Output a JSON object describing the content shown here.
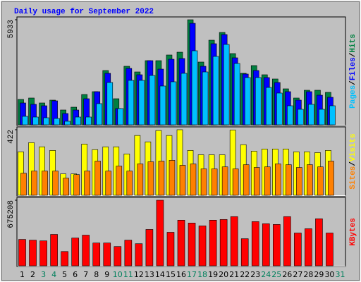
{
  "chart_data": {
    "type": "bar",
    "title": "Daily usage for September 2022",
    "categories": [
      "1",
      "2",
      "3",
      "4",
      "5",
      "6",
      "7",
      "8",
      "9",
      "10",
      "11",
      "12",
      "13",
      "14",
      "15",
      "16",
      "17",
      "18",
      "19",
      "20",
      "21",
      "22",
      "23",
      "24",
      "25",
      "26",
      "27",
      "28",
      "29",
      "30",
      "31"
    ],
    "category_colors": [
      "#000000",
      "#000000",
      "#00805c",
      "#00805c",
      "#000000",
      "#000000",
      "#000000",
      "#000000",
      "#000000",
      "#00805c",
      "#00805c",
      "#000000",
      "#000000",
      "#000000",
      "#000000",
      "#000000",
      "#00805c",
      "#00805c",
      "#000000",
      "#000000",
      "#000000",
      "#000000",
      "#000000",
      "#00805c",
      "#00805c",
      "#000000",
      "#000000",
      "#000000",
      "#000000",
      "#000000",
      "#00805c"
    ],
    "legend_separator": "/",
    "panels": [
      {
        "ylim": [
          0,
          5933
        ],
        "yticks": [
          5933
        ],
        "series": [
          {
            "name": "Pages",
            "color": "#00c0ff",
            "values": [
              478,
              438,
              398,
              358,
              199,
              438,
              438,
              1195,
              2389,
              916,
              2509,
              2509,
              2787,
              2190,
              2429,
              2907,
              4181,
              2986,
              3862,
              4539,
              3464,
              2668,
              2668,
              2110,
              1792,
              1075,
              876,
              1155,
              876,
              1075,
              null
            ]
          },
          {
            "name": "Files",
            "color": "#0000ff",
            "values": [
              1234,
              1155,
              1075,
              1354,
              637,
              836,
              1473,
              1871,
              2907,
              916,
              3185,
              2827,
              3623,
              3145,
              3703,
              3743,
              5733,
              3305,
              4579,
              5097,
              3783,
              2867,
              3066,
              2668,
              2389,
              1871,
              1394,
              1871,
              1672,
              1553,
              null
            ]
          },
          {
            "name": "Hits",
            "color": "#008040",
            "values": [
              1433,
              1513,
              1234,
              1393,
              836,
              995,
              1712,
              1871,
              3066,
              1473,
              3305,
              2986,
              3623,
              3623,
              3942,
              4101,
              5933,
              3544,
              4778,
              5216,
              4022,
              2907,
              3345,
              2827,
              2588,
              2031,
              1513,
              1951,
              1951,
              1832,
              null
            ]
          }
        ]
      },
      {
        "ylim": [
          0,
          422
        ],
        "yticks": [
          422
        ],
        "series": [
          {
            "name": "Sites",
            "color": "#ff8000",
            "values": [
              142,
              156,
              156,
              156,
              110,
              133,
              156,
              220,
              156,
              188,
              156,
              202,
              216,
              220,
              225,
              193,
              202,
              170,
              170,
              183,
              170,
              197,
              179,
              183,
              202,
              197,
              179,
              197,
              183,
              220,
              null
            ]
          },
          {
            "name": "Visits",
            "color": "#ffff00",
            "values": [
              280,
              339,
              312,
              289,
              138,
              138,
              330,
              294,
              312,
              312,
              266,
              385,
              344,
              417,
              385,
              422,
              289,
              261,
              261,
              261,
              420,
              326,
              284,
              298,
              298,
              298,
              280,
              280,
              275,
              289,
              null
            ]
          }
        ]
      },
      {
        "ylim": [
          0,
          675208
        ],
        "yticks": [
          675208
        ],
        "series": [
          {
            "name": "KBytes",
            "color": "#ff0000",
            "values": [
              271543,
              264204,
              256865,
              322916,
              146780,
              286221,
              315577,
              234848,
              234848,
              198153,
              264204,
              227509,
              374289,
              675208,
              344933,
              469696,
              440340,
              410984,
              469696,
              477035,
              506391,
              278882,
              455018,
              433001,
              425662,
              506391,
              337594,
              381628,
              484374,
              337594,
              null
            ]
          }
        ]
      }
    ]
  }
}
